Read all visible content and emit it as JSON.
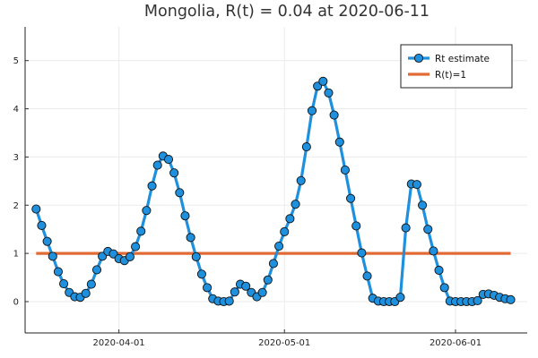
{
  "chart_data": {
    "type": "line",
    "title": "Mongolia, R(t) = 0.04 at 2020-06-11",
    "xlabel": "",
    "ylabel": "",
    "x_start_date": "2020-03-17",
    "x_step_days": 1,
    "x_ticks": [
      {
        "label": "2020-04-01",
        "date": "2020-04-01"
      },
      {
        "label": "2020-05-01",
        "date": "2020-05-01"
      },
      {
        "label": "2020-06-01",
        "date": "2020-06-01"
      }
    ],
    "xlim": [
      "2020-03-15",
      "2020-06-14"
    ],
    "y_ticks": [
      0,
      1,
      2,
      3,
      4,
      5
    ],
    "ylim": [
      -0.65,
      5.7
    ],
    "grid": true,
    "legend_position": "top-right",
    "series": [
      {
        "name": "Rt estimate",
        "color": "#1e90dd",
        "marker": "circle",
        "values": [
          1.92,
          1.58,
          1.25,
          0.94,
          0.62,
          0.37,
          0.19,
          0.1,
          0.09,
          0.17,
          0.36,
          0.66,
          0.94,
          1.04,
          0.99,
          0.89,
          0.85,
          0.93,
          1.14,
          1.46,
          1.89,
          2.4,
          2.83,
          3.02,
          2.95,
          2.67,
          2.26,
          1.78,
          1.33,
          0.93,
          0.57,
          0.29,
          0.06,
          0.01,
          0.0,
          0.01,
          0.2,
          0.36,
          0.32,
          0.19,
          0.1,
          0.19,
          0.45,
          0.79,
          1.15,
          1.45,
          1.72,
          2.02,
          2.51,
          3.21,
          3.96,
          4.47,
          4.57,
          4.33,
          3.87,
          3.31,
          2.73,
          2.14,
          1.57,
          1.01,
          0.53,
          0.07,
          0.01,
          0.0,
          0.0,
          0.0,
          0.09,
          1.53,
          2.44,
          2.43,
          2.0,
          1.5,
          1.05,
          0.65,
          0.29,
          0.01,
          0.0,
          0.0,
          0.0,
          0.0,
          0.02,
          0.15,
          0.16,
          0.13,
          0.09,
          0.06,
          0.04
        ]
      },
      {
        "name": "R(t)=1",
        "color": "#e26a35",
        "marker": "none",
        "x_range": [
          "2020-03-17",
          "2020-06-11"
        ],
        "constant": 1
      }
    ]
  }
}
